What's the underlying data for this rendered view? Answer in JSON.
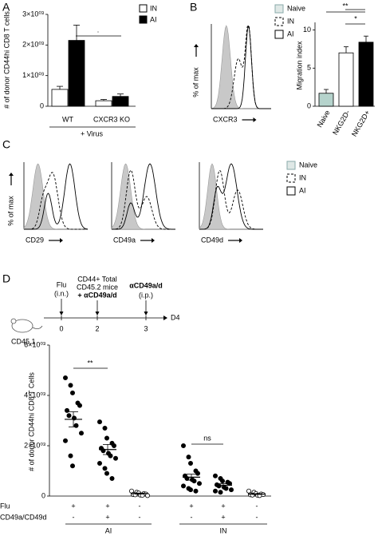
{
  "panel_labels": [
    "A",
    "B",
    "C",
    "D"
  ],
  "chart_data": [
    {
      "type": "bar",
      "ylabel": "# of donor CD44hi CD8 T cells",
      "categories": [
        "WT",
        "CXCR3 KO"
      ],
      "group_label": "+ Virus",
      "series": [
        {
          "name": "IN",
          "color": "#ffffff",
          "values": [
            550,
            180
          ],
          "errors": [
            100,
            40
          ]
        },
        {
          "name": "AI",
          "color": "#000000",
          "values": [
            2150,
            320
          ],
          "errors": [
            500,
            80
          ]
        }
      ],
      "ylim": [
        0,
        3000
      ],
      "yticks": [
        0,
        {
          "value": 1000,
          "label": "1×10⁰³"
        },
        {
          "value": 2000,
          "label": "2×10⁰³"
        },
        {
          "value": 3000,
          "label": "3×10⁰³"
        }
      ],
      "annotations": [
        "·"
      ]
    },
    {
      "type": "flow",
      "ylabel": "% of max",
      "panels": [
        "CXCR3"
      ],
      "series": [
        {
          "name": "Naive",
          "color": "#c8c8c8"
        },
        {
          "name": "IN",
          "color": "#000000"
        },
        {
          "name": "AI",
          "color": "#000000"
        }
      ]
    },
    {
      "type": "bar",
      "ylabel": "Migration index",
      "categories": [
        "Naive",
        "NKG2D-",
        "NKG2D+"
      ],
      "values": [
        1.7,
        7,
        8.4
      ],
      "errors": [
        0.5,
        0.8,
        0.8
      ],
      "colors": [
        "#b5d3cc",
        "#ffffff",
        "#000000"
      ],
      "ylim": [
        0,
        11
      ],
      "yticks": [
        0,
        5,
        10
      ],
      "annotations": [
        "**",
        "*"
      ]
    },
    {
      "type": "flow",
      "ylabel": "% of max",
      "panels": [
        "CD29",
        "CD49a",
        "CD49d"
      ],
      "series": [
        {
          "name": "Naive",
          "color": "#c8c8c8"
        },
        {
          "name": "IN",
          "color": "#000000"
        },
        {
          "name": "AI",
          "color": "#000000"
        }
      ]
    },
    {
      "type": "dot",
      "ylabel": "# of donor CD44hi CD8 T Cells",
      "groups": [
        {
          "values": [
            4700,
            4400,
            4100,
            3700,
            3600,
            3400,
            3200,
            3100,
            2800,
            2500,
            2200,
            1600,
            1200
          ],
          "mean": 3050,
          "sem": 300,
          "open": false
        },
        {
          "values": [
            2950,
            2700,
            2300,
            2100,
            2000,
            1900,
            1800,
            1700,
            1600,
            1500,
            1300,
            1100,
            900,
            700
          ],
          "mean": 1850,
          "sem": 200,
          "open": false
        },
        {
          "values": [
            200,
            150,
            120,
            100,
            80,
            60,
            50,
            40,
            30,
            20
          ],
          "mean": 100,
          "sem": 20,
          "open": true
        },
        {
          "values": [
            2000,
            1550,
            1300,
            1000,
            900,
            800,
            700,
            650,
            600,
            500,
            400,
            300,
            250,
            200
          ],
          "mean": 750,
          "sem": 120,
          "open": false
        },
        {
          "values": [
            800,
            700,
            600,
            550,
            500,
            450,
            400,
            350,
            300,
            250,
            200,
            150
          ],
          "mean": 430,
          "sem": 60,
          "open": false
        },
        {
          "values": [
            200,
            150,
            100,
            80,
            60,
            50,
            40,
            30,
            20
          ],
          "mean": 80,
          "sem": 15,
          "open": true
        }
      ],
      "ylim": [
        0,
        6000
      ],
      "yticks": [
        0,
        {
          "value": 2000,
          "label": "2×10⁰³"
        },
        {
          "value": 4000,
          "label": "4×10⁰³"
        },
        {
          "value": 6000,
          "label": "6×10⁰³"
        }
      ],
      "rows": [
        {
          "label": "Flu",
          "marks": [
            "+",
            "+",
            "-",
            "+",
            "+",
            "-"
          ]
        },
        {
          "label": "CD49a/CD49d",
          "marks": [
            "-",
            "+",
            "-",
            "-",
            "+",
            "-"
          ]
        }
      ],
      "group_labels": [
        "AI",
        "IN"
      ],
      "annotations": [
        "**",
        "ns"
      ]
    }
  ],
  "timeline": {
    "mouse": "CD45.1",
    "end": "D4",
    "events": [
      {
        "day": "0",
        "lines": [
          "Flu",
          "(i.n.)"
        ]
      },
      {
        "day": "2",
        "lines": [
          "CD44+ Total",
          "CD45.2 mice",
          "+ αCD49a/d"
        ]
      },
      {
        "day": "3",
        "lines": [
          "αCD49a/d",
          "(i.p.)"
        ]
      }
    ]
  }
}
